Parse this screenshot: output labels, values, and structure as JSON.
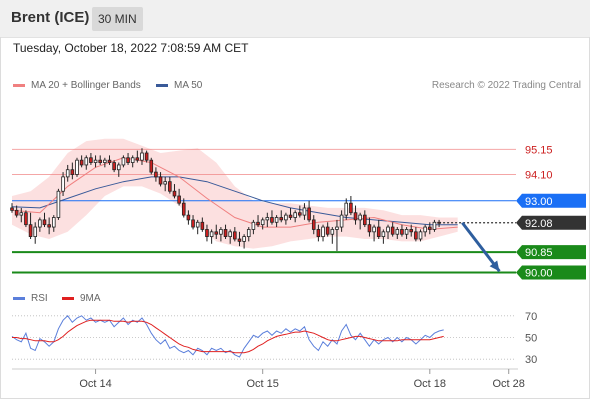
{
  "header": {
    "instrument": "Brent (ICE)",
    "timeframe": "30 MIN"
  },
  "datetime": "Tuesday, October 18, 2022 7:08:59 AM CET",
  "legend": {
    "ma20_label": "MA 20 + Bollinger Bands",
    "ma20_color": "#f08080",
    "ma50_label": "MA 50",
    "ma50_color": "#3a5a99",
    "credit": "Research © 2022 Trading Central"
  },
  "rsi_legend": {
    "rsi_label": "RSI",
    "rsi_color": "#5b7fdb",
    "ma9_label": "9MA",
    "ma9_color": "#e02020"
  },
  "chart_data": [
    {
      "type": "candlestick",
      "title": "",
      "ylim": [
        89.6,
        96.8
      ],
      "x_ticks": [
        {
          "label": "Oct 14",
          "x": 18
        },
        {
          "label": "Oct 15",
          "x": 54
        },
        {
          "label": "Oct 18",
          "x": 90
        },
        {
          "label": "Oct 28",
          "x": 107
        }
      ],
      "x_range": [
        0,
        109
      ],
      "levels": [
        {
          "label": "95.15",
          "value": 95.15,
          "kind": "resistance-weak",
          "color": "#f08080"
        },
        {
          "label": "94.10",
          "value": 94.1,
          "kind": "resistance-weak",
          "color": "#f08080"
        },
        {
          "label": "93.00",
          "value": 93.0,
          "kind": "resistance",
          "color": "#1a6ff5"
        },
        {
          "label": "92.08",
          "value": 92.08,
          "kind": "last",
          "color": "#333333"
        },
        {
          "label": "90.85",
          "value": 90.85,
          "kind": "support",
          "color": "#1a8a1a"
        },
        {
          "label": "90.00",
          "value": 90.0,
          "kind": "support",
          "color": "#1a8a1a"
        }
      ],
      "forecast_arrow": {
        "from": [
          97,
          92.08
        ],
        "to": [
          105,
          90.05
        ],
        "color": "#2e5e9e"
      },
      "ma20": [
        [
          0,
          92.6
        ],
        [
          6,
          92.5
        ],
        [
          12,
          93.6
        ],
        [
          18,
          94.4
        ],
        [
          24,
          94.8
        ],
        [
          30,
          94.6
        ],
        [
          36,
          94.0
        ],
        [
          42,
          93.1
        ],
        [
          48,
          92.3
        ],
        [
          54,
          91.9
        ],
        [
          60,
          91.9
        ],
        [
          66,
          92.1
        ],
        [
          72,
          92.2
        ],
        [
          78,
          92.3
        ],
        [
          84,
          92.0
        ],
        [
          90,
          91.8
        ],
        [
          96,
          91.9
        ]
      ],
      "ma50": [
        [
          0,
          92.75
        ],
        [
          6,
          92.7
        ],
        [
          12,
          93.1
        ],
        [
          18,
          93.5
        ],
        [
          24,
          93.8
        ],
        [
          30,
          94.0
        ],
        [
          36,
          94.0
        ],
        [
          42,
          93.8
        ],
        [
          48,
          93.4
        ],
        [
          54,
          93.0
        ],
        [
          60,
          92.7
        ],
        [
          66,
          92.5
        ],
        [
          72,
          92.3
        ],
        [
          78,
          92.2
        ],
        [
          84,
          92.1
        ],
        [
          90,
          92.0
        ],
        [
          96,
          92.0
        ]
      ],
      "bb_upper": [
        [
          0,
          93.2
        ],
        [
          4,
          93.4
        ],
        [
          8,
          94.0
        ],
        [
          12,
          95.0
        ],
        [
          16,
          95.5
        ],
        [
          20,
          95.6
        ],
        [
          24,
          95.6
        ],
        [
          28,
          95.3
        ],
        [
          32,
          95.0
        ],
        [
          36,
          95.1
        ],
        [
          40,
          95.2
        ],
        [
          44,
          94.6
        ],
        [
          48,
          93.6
        ],
        [
          52,
          93.0
        ],
        [
          56,
          92.9
        ],
        [
          60,
          92.9
        ],
        [
          64,
          92.8
        ],
        [
          68,
          92.7
        ],
        [
          72,
          92.7
        ],
        [
          76,
          92.7
        ],
        [
          80,
          92.6
        ],
        [
          84,
          92.4
        ],
        [
          88,
          92.4
        ],
        [
          92,
          92.3
        ],
        [
          96,
          92.3
        ]
      ],
      "bb_lower": [
        [
          0,
          92.0
        ],
        [
          4,
          91.6
        ],
        [
          8,
          91.4
        ],
        [
          12,
          91.7
        ],
        [
          16,
          92.4
        ],
        [
          20,
          93.2
        ],
        [
          24,
          93.6
        ],
        [
          28,
          93.6
        ],
        [
          32,
          93.3
        ],
        [
          36,
          92.8
        ],
        [
          40,
          92.0
        ],
        [
          44,
          91.3
        ],
        [
          48,
          91.1
        ],
        [
          52,
          91.0
        ],
        [
          56,
          91.1
        ],
        [
          60,
          91.3
        ],
        [
          64,
          91.4
        ],
        [
          68,
          91.5
        ],
        [
          72,
          91.5
        ],
        [
          76,
          91.4
        ],
        [
          80,
          91.4
        ],
        [
          84,
          91.3
        ],
        [
          88,
          91.3
        ],
        [
          92,
          91.5
        ],
        [
          96,
          91.7
        ]
      ],
      "candles": [
        [
          92.7,
          92.9,
          92.5,
          92.6
        ],
        [
          92.6,
          92.8,
          92.3,
          92.4
        ],
        [
          92.4,
          92.7,
          92.1,
          92.5
        ],
        [
          92.5,
          92.6,
          91.9,
          92.0
        ],
        [
          92.0,
          92.5,
          91.4,
          91.5
        ],
        [
          91.5,
          92.1,
          91.2,
          91.9
        ],
        [
          91.9,
          92.3,
          91.7,
          92.2
        ],
        [
          92.2,
          92.5,
          91.9,
          92.0
        ],
        [
          92.0,
          92.3,
          91.6,
          91.9
        ],
        [
          91.9,
          92.4,
          91.7,
          92.3
        ],
        [
          92.3,
          93.5,
          92.2,
          93.4
        ],
        [
          93.4,
          94.2,
          93.2,
          94.0
        ],
        [
          94.0,
          94.5,
          93.8,
          94.3
        ],
        [
          94.3,
          94.6,
          93.9,
          94.1
        ],
        [
          94.1,
          94.8,
          94.0,
          94.7
        ],
        [
          94.7,
          94.9,
          94.4,
          94.5
        ],
        [
          94.5,
          94.9,
          94.3,
          94.8
        ],
        [
          94.8,
          95.0,
          94.5,
          94.6
        ],
        [
          94.6,
          94.9,
          94.4,
          94.7
        ],
        [
          94.7,
          94.9,
          94.5,
          94.6
        ],
        [
          94.6,
          94.8,
          94.4,
          94.7
        ],
        [
          94.7,
          94.9,
          94.5,
          94.6
        ],
        [
          94.6,
          94.7,
          94.2,
          94.3
        ],
        [
          94.3,
          94.6,
          94.0,
          94.5
        ],
        [
          94.5,
          94.9,
          94.4,
          94.8
        ],
        [
          94.8,
          95.0,
          94.5,
          94.6
        ],
        [
          94.6,
          94.9,
          94.4,
          94.8
        ],
        [
          94.8,
          95.1,
          94.6,
          94.7
        ],
        [
          94.7,
          95.2,
          94.5,
          95.0
        ],
        [
          95.0,
          95.1,
          94.6,
          94.7
        ],
        [
          94.7,
          94.8,
          94.1,
          94.2
        ],
        [
          94.2,
          94.4,
          93.8,
          94.0
        ],
        [
          94.0,
          94.2,
          93.6,
          93.7
        ],
        [
          93.7,
          94.0,
          93.4,
          93.8
        ],
        [
          93.8,
          94.0,
          93.3,
          93.4
        ],
        [
          93.4,
          93.7,
          93.1,
          93.2
        ],
        [
          93.2,
          93.5,
          92.8,
          92.9
        ],
        [
          92.9,
          93.1,
          92.3,
          92.4
        ],
        [
          92.4,
          92.6,
          92.0,
          92.2
        ],
        [
          92.2,
          92.4,
          91.8,
          91.9
        ],
        [
          91.9,
          92.2,
          91.6,
          92.1
        ],
        [
          92.1,
          92.3,
          91.7,
          91.8
        ],
        [
          91.8,
          92.0,
          91.3,
          91.5
        ],
        [
          91.5,
          91.8,
          91.2,
          91.7
        ],
        [
          91.7,
          92.0,
          91.4,
          91.6
        ],
        [
          91.6,
          91.9,
          91.3,
          91.8
        ],
        [
          91.8,
          92.0,
          91.4,
          91.5
        ],
        [
          91.5,
          91.8,
          91.2,
          91.7
        ],
        [
          91.7,
          91.9,
          91.3,
          91.4
        ],
        [
          91.4,
          91.7,
          91.1,
          91.3
        ],
        [
          91.3,
          91.6,
          91.0,
          91.5
        ],
        [
          91.5,
          91.9,
          91.3,
          91.8
        ],
        [
          91.8,
          92.2,
          91.6,
          92.1
        ],
        [
          92.1,
          92.4,
          91.9,
          92.0
        ],
        [
          92.0,
          92.3,
          91.8,
          92.2
        ],
        [
          92.2,
          92.5,
          91.9,
          92.3
        ],
        [
          92.3,
          92.6,
          92.0,
          92.1
        ],
        [
          92.1,
          92.4,
          91.9,
          92.3
        ],
        [
          92.3,
          92.6,
          92.1,
          92.2
        ],
        [
          92.2,
          92.5,
          92.0,
          92.4
        ],
        [
          92.4,
          92.7,
          92.2,
          92.3
        ],
        [
          92.3,
          92.6,
          92.1,
          92.5
        ],
        [
          92.5,
          92.8,
          92.3,
          92.4
        ],
        [
          92.4,
          92.9,
          92.2,
          92.7
        ],
        [
          92.7,
          93.0,
          92.1,
          92.2
        ],
        [
          92.2,
          92.4,
          91.6,
          91.8
        ],
        [
          91.8,
          92.0,
          91.3,
          91.5
        ],
        [
          91.5,
          92.0,
          91.3,
          91.9
        ],
        [
          91.9,
          92.1,
          91.5,
          91.6
        ],
        [
          91.6,
          91.9,
          91.2,
          91.8
        ],
        [
          91.8,
          92.2,
          90.9,
          91.9
        ],
        [
          91.9,
          92.6,
          91.7,
          92.4
        ],
        [
          92.4,
          93.1,
          92.2,
          92.9
        ],
        [
          92.9,
          93.2,
          92.4,
          92.5
        ],
        [
          92.5,
          92.8,
          92.0,
          92.2
        ],
        [
          92.2,
          92.5,
          91.8,
          92.4
        ],
        [
          92.4,
          92.6,
          91.9,
          92.0
        ],
        [
          92.0,
          92.3,
          91.5,
          91.7
        ],
        [
          91.7,
          92.0,
          91.3,
          91.9
        ],
        [
          91.9,
          92.2,
          91.4,
          91.5
        ],
        [
          91.5,
          91.8,
          91.2,
          91.7
        ],
        [
          91.7,
          92.0,
          91.4,
          91.9
        ],
        [
          91.9,
          92.1,
          91.5,
          91.6
        ],
        [
          91.6,
          91.9,
          91.4,
          91.8
        ],
        [
          91.8,
          92.0,
          91.5,
          91.6
        ],
        [
          91.6,
          91.9,
          91.4,
          91.8
        ],
        [
          91.8,
          92.0,
          91.5,
          91.7
        ],
        [
          91.7,
          91.9,
          91.3,
          91.4
        ],
        [
          91.4,
          91.8,
          91.3,
          91.7
        ],
        [
          91.7,
          92.0,
          91.5,
          91.9
        ],
        [
          91.9,
          92.1,
          91.6,
          91.8
        ],
        [
          91.8,
          92.2,
          91.7,
          92.1
        ],
        [
          92.1,
          92.2,
          91.9,
          92.08
        ]
      ]
    },
    {
      "type": "line",
      "title": "",
      "ylim": [
        20,
        80
      ],
      "y_ticks": [
        "70",
        "50",
        "30"
      ],
      "x_range": [
        0,
        109
      ],
      "series": [
        {
          "name": "RSI",
          "values": [
            51,
            48,
            46,
            54,
            40,
            38,
            49,
            46,
            42,
            46,
            58,
            66,
            70,
            64,
            68,
            70,
            66,
            68,
            64,
            66,
            64,
            66,
            60,
            64,
            68,
            62,
            66,
            64,
            68,
            62,
            54,
            48,
            44,
            48,
            40,
            42,
            38,
            36,
            38,
            34,
            40,
            38,
            34,
            40,
            38,
            40,
            36,
            38,
            34,
            32,
            40,
            46,
            52,
            50,
            54,
            56,
            52,
            56,
            54,
            58,
            55,
            58,
            56,
            60,
            48,
            42,
            38,
            46,
            42,
            48,
            44,
            56,
            62,
            52,
            48,
            54,
            48,
            42,
            48,
            44,
            48,
            50,
            46,
            50,
            46,
            50,
            48,
            44,
            48,
            52,
            50,
            54,
            56,
            57
          ]
        },
        {
          "name": "9MA",
          "values": [
            50,
            50,
            49,
            49,
            48,
            47,
            47,
            47,
            46,
            46,
            48,
            51,
            55,
            58,
            61,
            63,
            65,
            66,
            66,
            66,
            66,
            66,
            65,
            65,
            65,
            64,
            65,
            65,
            65,
            64,
            62,
            59,
            56,
            53,
            50,
            47,
            44,
            42,
            41,
            39,
            38,
            37,
            37,
            37,
            37,
            37,
            37,
            37,
            36,
            36,
            36,
            37,
            39,
            42,
            44,
            47,
            49,
            51,
            52,
            53,
            54,
            55,
            55,
            56,
            55,
            54,
            52,
            50,
            48,
            47,
            47,
            48,
            49,
            50,
            51,
            51,
            50,
            49,
            48,
            47,
            47,
            47,
            47,
            47,
            48,
            48,
            48,
            48,
            48,
            48,
            48,
            49,
            50,
            51
          ]
        }
      ]
    }
  ]
}
